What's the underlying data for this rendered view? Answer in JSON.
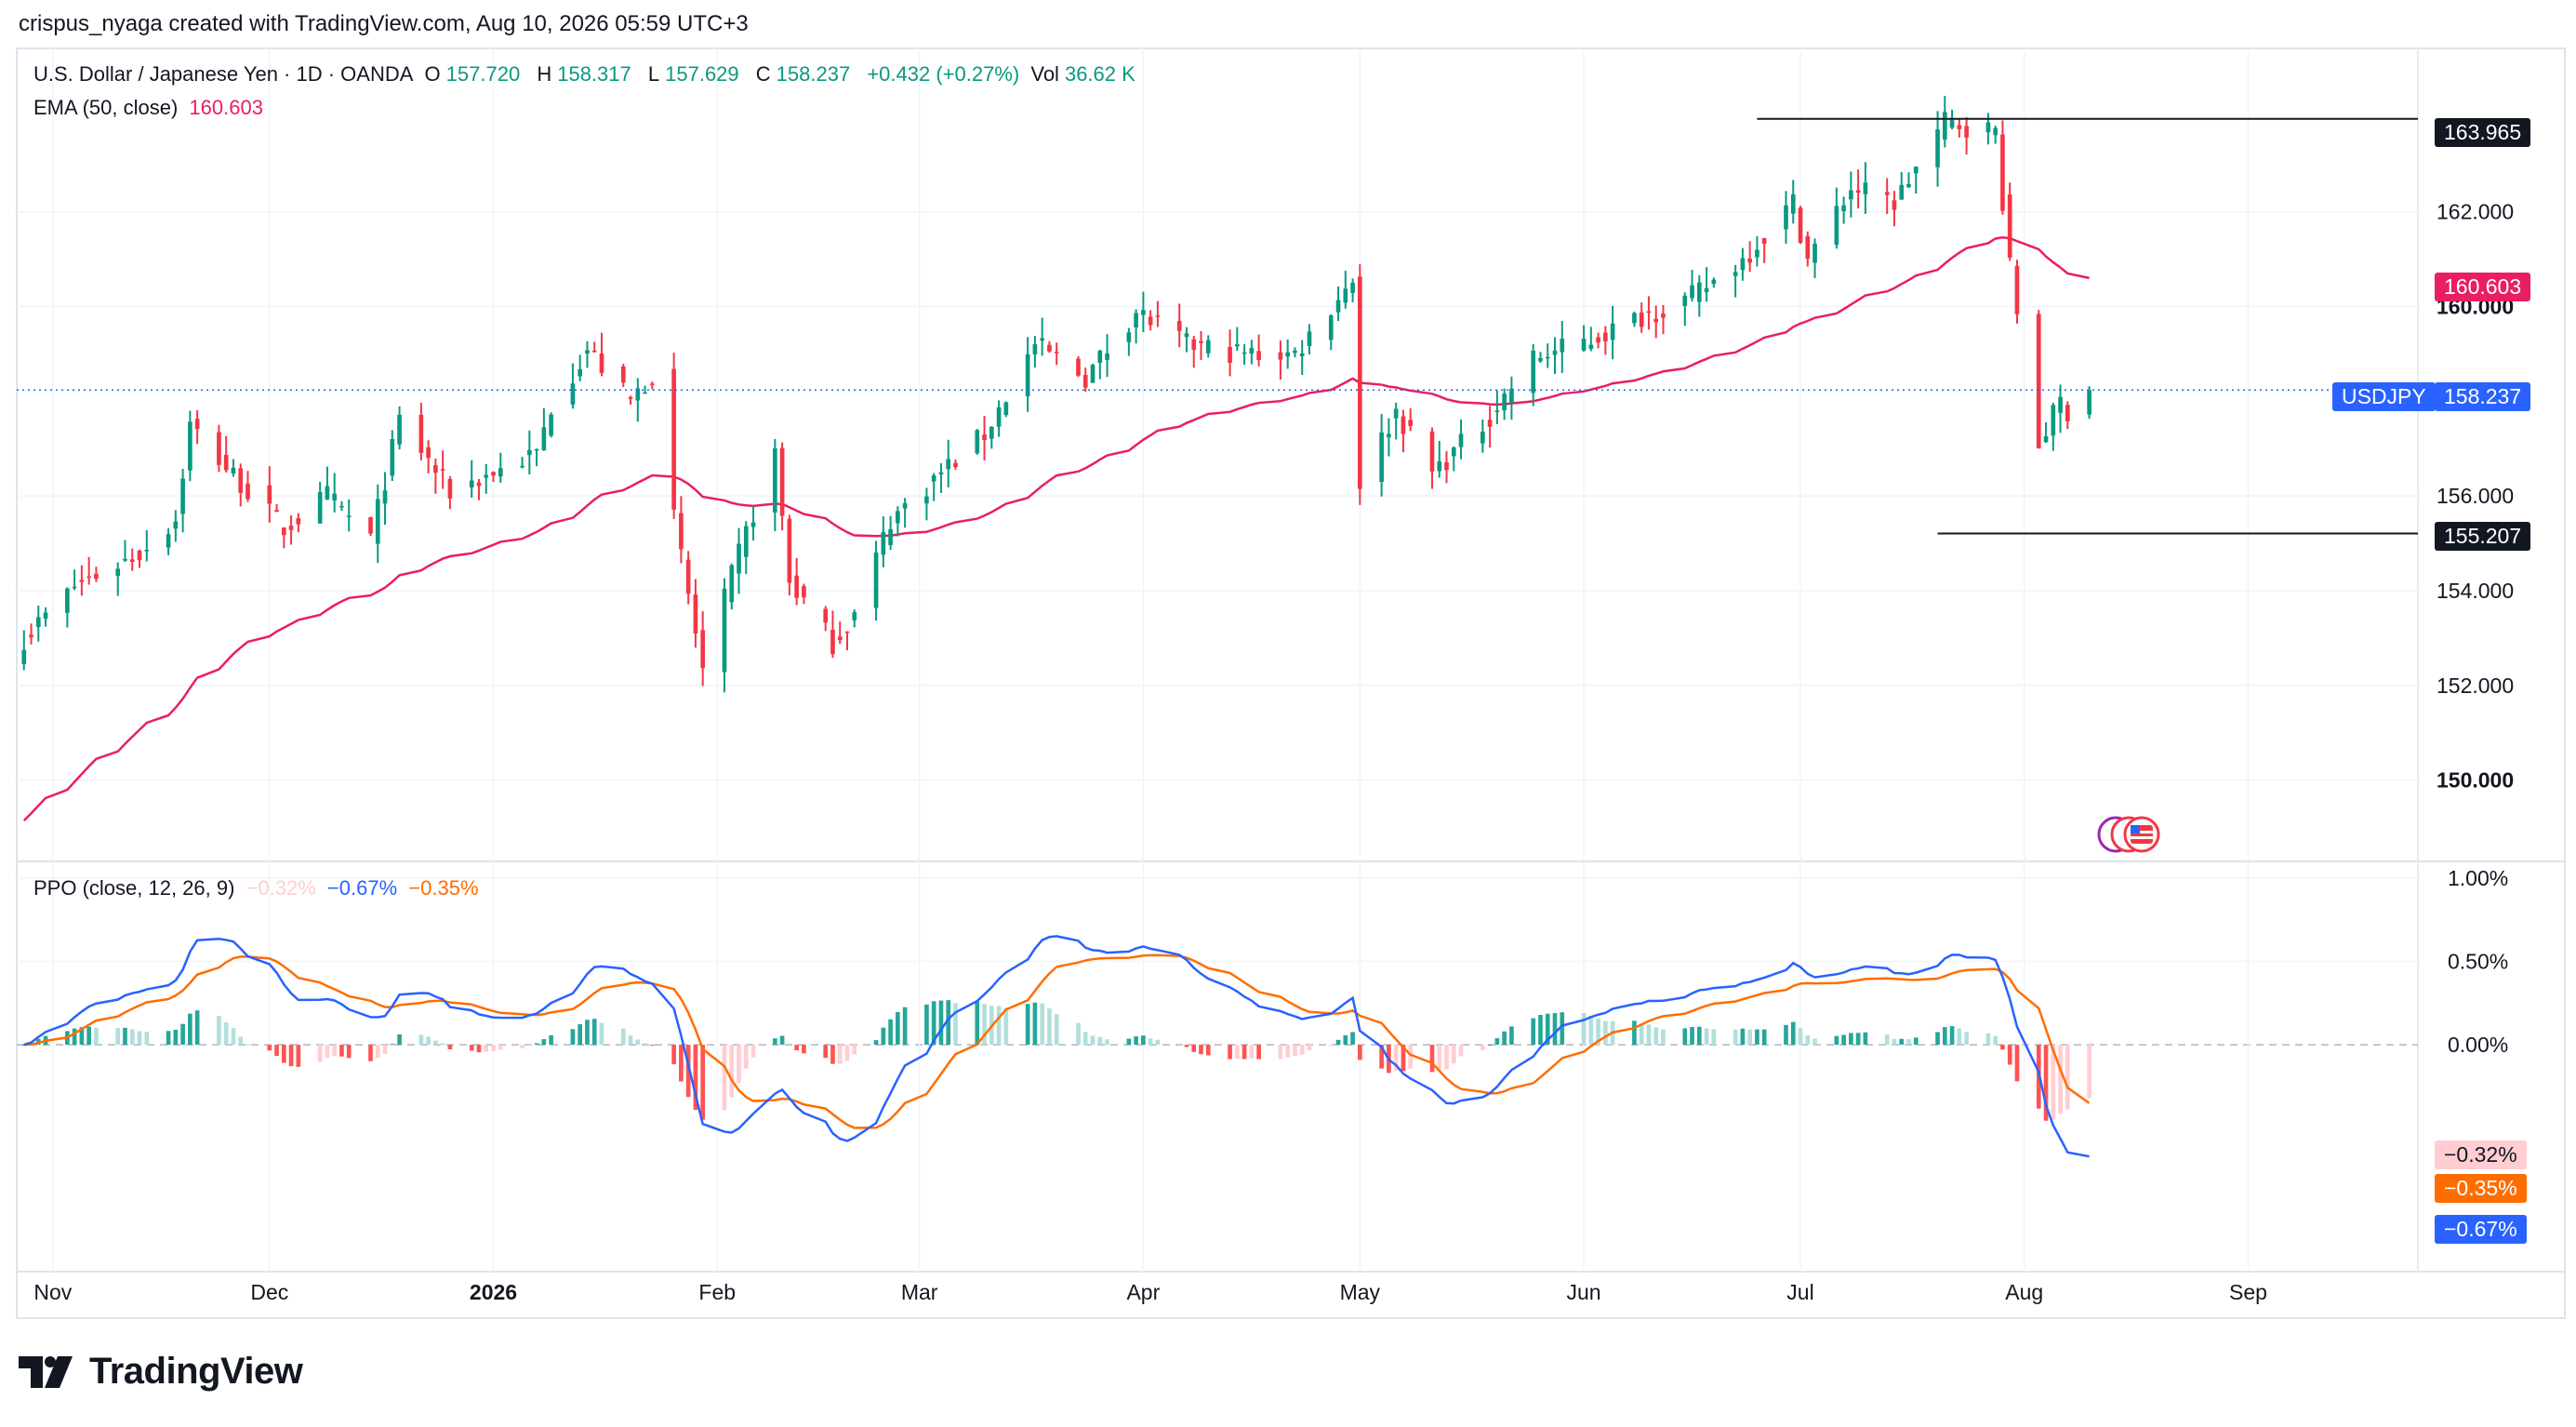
{
  "header": {
    "text": "crispus_nyaga created with TradingView.com, Aug 10, 2026 05:59 UTC+3"
  },
  "legend": {
    "symbol": "U.S. Dollar / Japanese Yen · 1D · OANDA",
    "open_label": "O",
    "open": "157.720",
    "high_label": "H",
    "high": "158.317",
    "low_label": "L",
    "low": "157.629",
    "close_label": "C",
    "close": "158.237",
    "change": "+0.432 (+0.27%)",
    "vol_label": "Vol",
    "vol": "36.62 K",
    "ema_label": "EMA (50, close)",
    "ema_value": "160.603",
    "ppo_label": "PPO (close, 12, 26, 9)",
    "ppo_hist": "−0.32%",
    "ppo_line": "−0.67%",
    "ppo_signal": "−0.35%"
  },
  "tags": {
    "high_level": "163.965",
    "ema": "160.603",
    "ticker": "USDJPY",
    "last": "158.237",
    "low_level": "155.207",
    "hist": "−0.32%",
    "signal": "−0.35%",
    "ppo": "−0.67%"
  },
  "footer": {
    "brand": "TradingView"
  },
  "colors": {
    "up": "#089981",
    "down": "#f23645",
    "ema": "#e91e63",
    "ppo_line": "#2962ff",
    "signal_line": "#ff6d00",
    "hist_up_strong": "#26a69a",
    "hist_up_weak": "#b2dfdb",
    "hist_down_strong": "#ff5252",
    "hist_down_weak": "#ffcdd2"
  },
  "chart_data": [
    {
      "type": "candlestick",
      "title": "U.S. Dollar / Japanese Yen · 1D · OANDA",
      "ylim": [
        148.5,
        165.0
      ],
      "y_ticks": [
        "150.000",
        "152.000",
        "154.000",
        "156.000",
        "160.000",
        "162.000"
      ],
      "x_ticks": [
        "Nov",
        "Dec",
        "2026",
        "Feb",
        "Mar",
        "Apr",
        "May",
        "Jun",
        "Jul",
        "Aug",
        "Sep"
      ],
      "grid": true,
      "anchors": [
        {
          "date": "2025-10-28",
          "close": 153.0
        },
        {
          "date": "2025-11-04",
          "close": 154.1
        },
        {
          "date": "2025-11-13",
          "close": 154.8
        },
        {
          "date": "2025-11-18",
          "close": 155.5
        },
        {
          "date": "2025-11-20",
          "close": 157.5
        },
        {
          "date": "2025-11-25",
          "close": 156.6
        },
        {
          "date": "2025-12-03",
          "close": 155.3
        },
        {
          "date": "2025-12-09",
          "close": 156.0
        },
        {
          "date": "2025-12-15",
          "close": 155.1
        },
        {
          "date": "2025-12-19",
          "close": 157.6
        },
        {
          "date": "2025-12-26",
          "close": 156.1
        },
        {
          "date": "2026-01-07",
          "close": 156.9
        },
        {
          "date": "2026-01-09",
          "close": 157.9
        },
        {
          "date": "2026-01-14",
          "close": 159.1
        },
        {
          "date": "2026-01-20",
          "close": 158.0
        },
        {
          "date": "2026-01-23",
          "close": 158.6
        },
        {
          "date": "2026-01-26",
          "close": 155.5
        },
        {
          "date": "2026-01-30",
          "close": 152.3
        },
        {
          "date": "2026-02-04",
          "close": 154.8
        },
        {
          "date": "2026-02-09",
          "close": 156.9
        },
        {
          "date": "2026-02-11",
          "close": 154.2
        },
        {
          "date": "2026-02-17",
          "close": 152.9
        },
        {
          "date": "2026-02-20",
          "close": 153.5
        },
        {
          "date": "2026-02-25",
          "close": 155.5
        },
        {
          "date": "2026-03-04",
          "close": 156.5
        },
        {
          "date": "2026-03-10",
          "close": 157.3
        },
        {
          "date": "2026-03-17",
          "close": 159.2
        },
        {
          "date": "2026-03-24",
          "close": 158.5
        },
        {
          "date": "2026-03-31",
          "close": 159.9
        },
        {
          "date": "2026-04-07",
          "close": 159.2
        },
        {
          "date": "2026-04-15",
          "close": 159.0
        },
        {
          "date": "2026-04-22",
          "close": 159.0
        },
        {
          "date": "2026-04-30",
          "close": 160.6
        },
        {
          "date": "2026-05-01",
          "close": 156.3
        },
        {
          "date": "2026-05-06",
          "close": 157.8
        },
        {
          "date": "2026-05-11",
          "close": 156.5
        },
        {
          "date": "2026-05-18",
          "close": 157.5
        },
        {
          "date": "2026-05-25",
          "close": 158.9
        },
        {
          "date": "2026-06-02",
          "close": 159.3
        },
        {
          "date": "2026-06-09",
          "close": 159.8
        },
        {
          "date": "2026-06-16",
          "close": 160.2
        },
        {
          "date": "2026-06-23",
          "close": 161.0
        },
        {
          "date": "2026-06-30",
          "close": 162.2
        },
        {
          "date": "2026-07-02",
          "close": 161.0
        },
        {
          "date": "2026-07-08",
          "close": 162.5
        },
        {
          "date": "2026-07-14",
          "close": 162.2
        },
        {
          "date": "2026-07-21",
          "close": 163.9
        },
        {
          "date": "2026-07-28",
          "close": 163.7
        },
        {
          "date": "2026-07-30",
          "close": 160.8
        },
        {
          "date": "2026-08-03",
          "close": 157.1
        },
        {
          "date": "2026-08-06",
          "close": 158.0
        },
        {
          "date": "2026-08-07",
          "close": 157.8
        },
        {
          "date": "2026-08-10",
          "close": 158.237
        }
      ],
      "last": {
        "open": 157.72,
        "high": 158.317,
        "low": 157.629,
        "close": 158.237
      },
      "ema50_end": 160.603,
      "horizontal_lines": [
        163.965,
        155.207
      ]
    },
    {
      "type": "line",
      "title": "PPO (close, 12, 26, 9)",
      "ylim": [
        -1.35,
        1.05
      ],
      "y_ticks": [
        "1.00%",
        "0.50%",
        "0.00%"
      ],
      "series": [
        {
          "name": "PPO",
          "last": -0.67
        },
        {
          "name": "Signal",
          "last": -0.35
        },
        {
          "name": "Histogram",
          "last": -0.32
        }
      ]
    }
  ]
}
